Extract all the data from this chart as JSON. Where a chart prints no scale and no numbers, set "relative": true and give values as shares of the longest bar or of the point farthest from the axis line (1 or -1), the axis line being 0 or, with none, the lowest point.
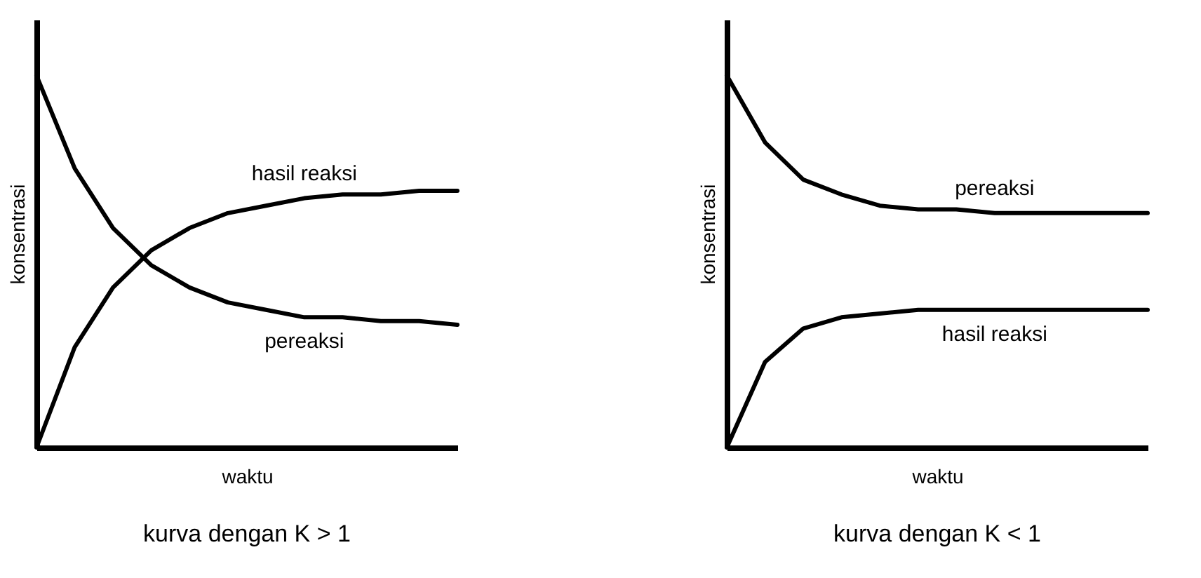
{
  "chart_data": [
    {
      "type": "line",
      "title": "kurva dengan K > 1",
      "xlabel": "waktu",
      "ylabel": "konsentrasi",
      "relative": true,
      "legend": false,
      "categories": [
        null,
        null,
        null,
        null,
        null,
        null,
        null,
        null,
        null,
        null,
        null,
        null
      ],
      "series": [
        {
          "name": "hasil reaksi",
          "color": "#000000",
          "values": [
            0,
            0.27,
            0.43,
            0.53,
            0.59,
            0.63,
            0.65,
            0.67,
            0.68,
            0.68,
            0.69,
            0.69
          ]
        },
        {
          "name": "pereaksi",
          "color": "#000000",
          "values": [
            1,
            0.75,
            0.59,
            0.49,
            0.43,
            0.39,
            0.37,
            0.35,
            0.35,
            0.34,
            0.34,
            0.33
          ]
        }
      ]
    },
    {
      "type": "line",
      "title": "kurva dengan K < 1",
      "xlabel": "waktu",
      "ylabel": "konsentrasi",
      "relative": true,
      "legend": false,
      "categories": [
        null,
        null,
        null,
        null,
        null,
        null,
        null,
        null,
        null,
        null,
        null,
        null
      ],
      "series": [
        {
          "name": "pereaksi",
          "color": "#000000",
          "values": [
            1,
            0.82,
            0.72,
            0.68,
            0.65,
            0.64,
            0.64,
            0.63,
            0.63,
            0.63,
            0.63,
            0.63
          ]
        },
        {
          "name": "hasil reaksi",
          "color": "#000000",
          "values": [
            0,
            0.23,
            0.32,
            0.35,
            0.36,
            0.37,
            0.37,
            0.37,
            0.37,
            0.37,
            0.37,
            0.37
          ]
        }
      ]
    }
  ]
}
